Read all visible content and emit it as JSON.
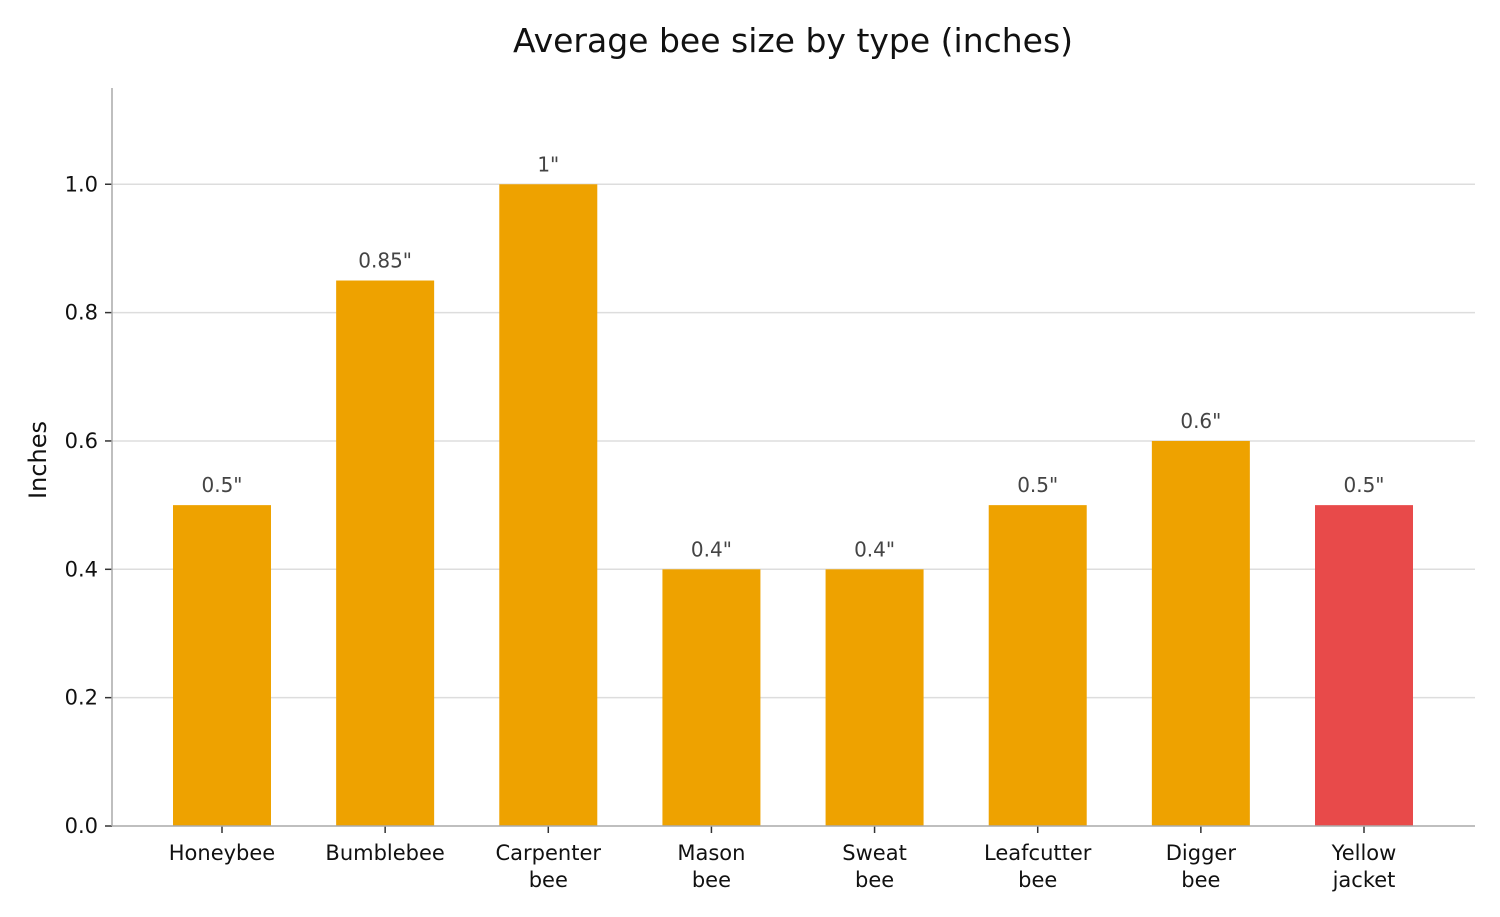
{
  "chart_data": {
    "type": "bar",
    "title": "Average bee size by type (inches)",
    "xlabel": "",
    "ylabel": "Inches",
    "ylim": [
      0,
      1.15
    ],
    "yticks": [
      0.0,
      0.2,
      0.4,
      0.6,
      0.8,
      1.0
    ],
    "ytick_labels": [
      "0.0",
      "0.2",
      "0.4",
      "0.6",
      "0.8",
      "1.0"
    ],
    "grid": "horizontal",
    "categories": [
      "Honeybee",
      "Bumblebee",
      "Carpenter bee",
      "Mason bee",
      "Sweat bee",
      "Leafcutter bee",
      "Digger bee",
      "Yellow jacket"
    ],
    "category_lines": [
      [
        "Honeybee"
      ],
      [
        "Bumblebee"
      ],
      [
        "Carpenter",
        "bee"
      ],
      [
        "Mason",
        "bee"
      ],
      [
        "Sweat",
        "bee"
      ],
      [
        "Leafcutter",
        "bee"
      ],
      [
        "Digger",
        "bee"
      ],
      [
        "Yellow",
        "jacket"
      ]
    ],
    "values": [
      0.5,
      0.85,
      1.0,
      0.4,
      0.4,
      0.5,
      0.6,
      0.5
    ],
    "data_labels": [
      "0.5\"",
      "0.85\"",
      "1\"",
      "0.4\"",
      "0.4\"",
      "0.5\"",
      "0.6\"",
      "0.5\""
    ],
    "colors": [
      "#eea200",
      "#eea200",
      "#eea200",
      "#eea200",
      "#eea200",
      "#eea200",
      "#eea200",
      "#e84a4a"
    ],
    "grid_color": "#dddddd",
    "axis_color": "#aaaaaa"
  }
}
